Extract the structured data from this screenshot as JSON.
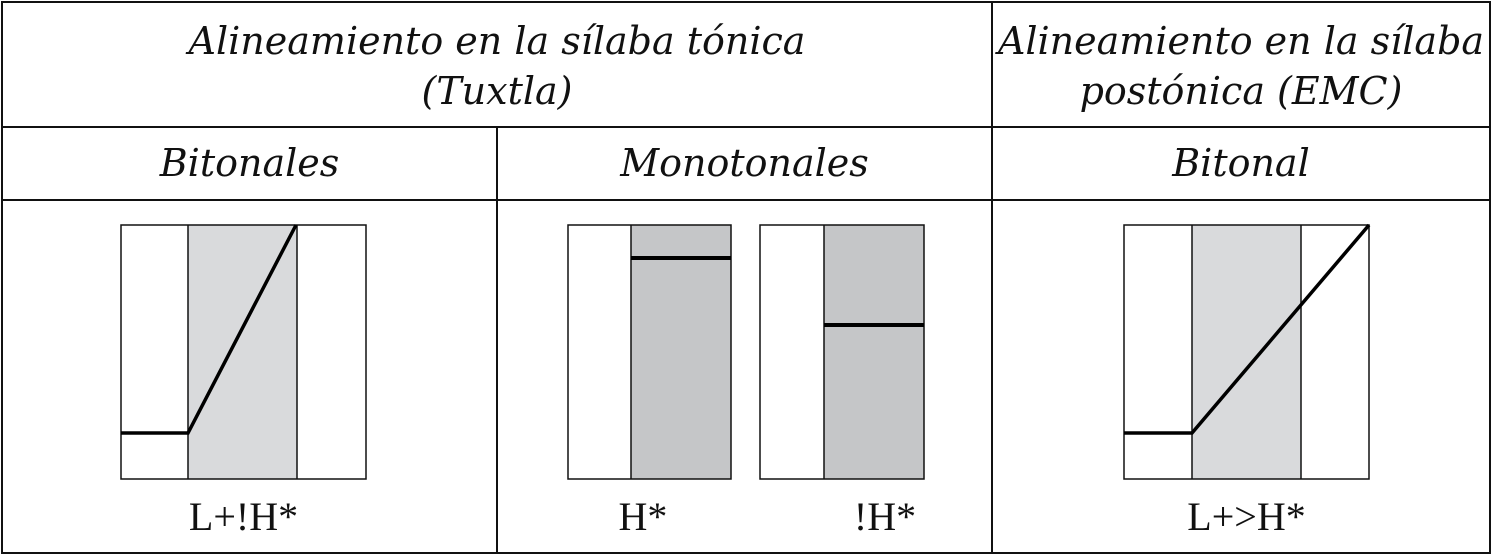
{
  "header": {
    "col_tonic": {
      "line1": "Alineamiento en la sílaba tónica",
      "line2": "(Tuxtla)"
    },
    "col_posttonic": {
      "line1": "Alineamiento en la sílaba",
      "line2": "postónica (EMC)"
    }
  },
  "subheader": {
    "bitonales": "Bitonales",
    "monotonales": "Monotonales",
    "bitonal": "Bitonal"
  },
  "diagrams": {
    "rise_tonic": {
      "label": "L+!H*",
      "low_level": 0.2,
      "high_level": 1.0
    },
    "high_level": {
      "label": "H*",
      "level": 0.87
    },
    "downstep_level": {
      "label": "!H*",
      "level": 0.61
    },
    "rise_posttonic": {
      "label": "L+>H*",
      "low_level": 0.2,
      "high_level": 1.0
    }
  },
  "colors": {
    "border": "#111111",
    "stressed_light": "#d9dadc",
    "stressed_dark": "#c5c6c8",
    "line": "#000000"
  }
}
